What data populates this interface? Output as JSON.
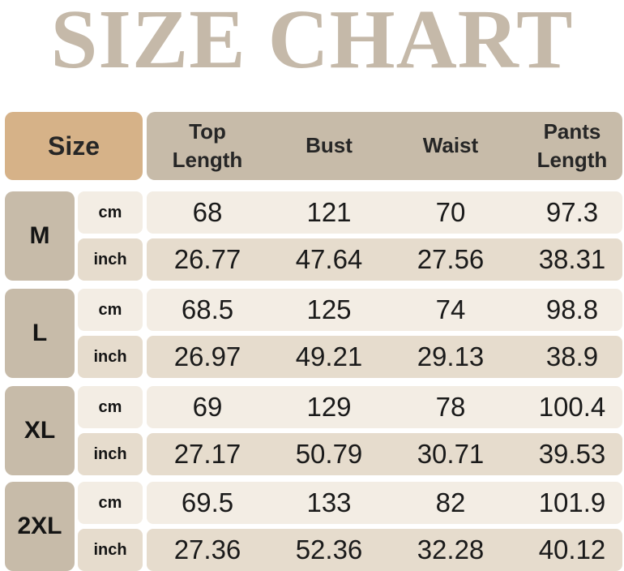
{
  "title": "SIZE CHART",
  "headers": {
    "size": "Size",
    "columns": [
      {
        "line1": "Top",
        "line2": "Length"
      },
      {
        "line1": "Bust",
        "line2": ""
      },
      {
        "line1": "Waist",
        "line2": ""
      },
      {
        "line1": "Pants",
        "line2": "Length"
      }
    ]
  },
  "sizes": [
    {
      "label": "M",
      "cm": {
        "unit": "cm",
        "values": [
          "68",
          "121",
          "70",
          "97.3"
        ]
      },
      "inch": {
        "unit": "inch",
        "values": [
          "26.77",
          "47.64",
          "27.56",
          "38.31"
        ]
      }
    },
    {
      "label": "L",
      "cm": {
        "unit": "cm",
        "values": [
          "68.5",
          "125",
          "74",
          "98.8"
        ]
      },
      "inch": {
        "unit": "inch",
        "values": [
          "26.97",
          "49.21",
          "29.13",
          "38.9"
        ]
      }
    },
    {
      "label": "XL",
      "cm": {
        "unit": "cm",
        "values": [
          "69",
          "129",
          "78",
          "100.4"
        ]
      },
      "inch": {
        "unit": "inch",
        "values": [
          "27.17",
          "50.79",
          "30.71",
          "39.53"
        ]
      }
    },
    {
      "label": "2XL",
      "cm": {
        "unit": "cm",
        "values": [
          "69.5",
          "133",
          "82",
          "101.9"
        ]
      },
      "inch": {
        "unit": "inch",
        "values": [
          "27.36",
          "52.36",
          "32.28",
          "40.12"
        ]
      }
    }
  ]
}
